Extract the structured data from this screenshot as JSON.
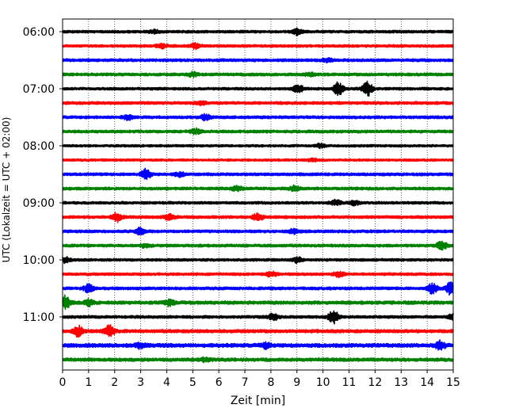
{
  "chart_data": {
    "type": "line",
    "title": "",
    "xlabel": "Zeit  [min]",
    "ylabel": "UTC (Lokalzeit = UTC + 02:00)",
    "xlim": [
      0,
      15
    ],
    "x_ticks": [
      0,
      1,
      2,
      3,
      4,
      5,
      6,
      7,
      8,
      9,
      10,
      11,
      12,
      13,
      14,
      15
    ],
    "x_tick_labels": [
      "0",
      "1",
      "2",
      "3",
      "4",
      "5",
      "6",
      "7",
      "8",
      "9",
      "10",
      "11",
      "12",
      "13",
      "14",
      "15"
    ],
    "y_tick_labels": [
      "06:00",
      "07:00",
      "08:00",
      "09:00",
      "10:00",
      "11:00"
    ],
    "grid": "vertical dotted",
    "color_cycle": [
      "#000000",
      "#ff0000",
      "#0000ff",
      "#008000"
    ],
    "series": [
      {
        "start": "06:00",
        "color": "#000000",
        "base_amplitude": 0.28,
        "events": [
          [
            9.0,
            0.6
          ],
          [
            3.5,
            0.35
          ]
        ]
      },
      {
        "start": "06:15",
        "color": "#ff0000",
        "base_amplitude": 0.28,
        "events": [
          [
            3.8,
            0.5
          ],
          [
            5.1,
            0.5
          ]
        ]
      },
      {
        "start": "06:30",
        "color": "#0000ff",
        "base_amplitude": 0.3,
        "events": [
          [
            10.2,
            0.35
          ]
        ]
      },
      {
        "start": "06:45",
        "color": "#008000",
        "base_amplitude": 0.3,
        "events": [
          [
            5.0,
            0.4
          ],
          [
            9.5,
            0.3
          ]
        ]
      },
      {
        "start": "07:00",
        "color": "#000000",
        "base_amplitude": 0.28,
        "events": [
          [
            9.05,
            0.8
          ],
          [
            10.6,
            1.3
          ],
          [
            11.7,
            1.5
          ]
        ]
      },
      {
        "start": "07:15",
        "color": "#ff0000",
        "base_amplitude": 0.3,
        "events": [
          [
            5.3,
            0.35
          ]
        ]
      },
      {
        "start": "07:30",
        "color": "#0000ff",
        "base_amplitude": 0.3,
        "events": [
          [
            2.5,
            0.5
          ],
          [
            5.5,
            0.6
          ]
        ]
      },
      {
        "start": "07:45",
        "color": "#008000",
        "base_amplitude": 0.3,
        "events": [
          [
            5.1,
            0.5
          ]
        ]
      },
      {
        "start": "08:00",
        "color": "#000000",
        "base_amplitude": 0.25,
        "events": [
          [
            9.9,
            0.4
          ]
        ]
      },
      {
        "start": "08:15",
        "color": "#ff0000",
        "base_amplitude": 0.25,
        "events": [
          [
            9.6,
            0.35
          ]
        ]
      },
      {
        "start": "08:30",
        "color": "#0000ff",
        "base_amplitude": 0.3,
        "events": [
          [
            3.2,
            1.0
          ],
          [
            4.5,
            0.4
          ]
        ]
      },
      {
        "start": "08:45",
        "color": "#008000",
        "base_amplitude": 0.3,
        "events": [
          [
            6.7,
            0.45
          ],
          [
            8.9,
            0.5
          ]
        ]
      },
      {
        "start": "09:00",
        "color": "#000000",
        "base_amplitude": 0.28,
        "events": [
          [
            10.5,
            0.5
          ],
          [
            11.2,
            0.4
          ]
        ]
      },
      {
        "start": "09:15",
        "color": "#ff0000",
        "base_amplitude": 0.3,
        "events": [
          [
            2.1,
            0.9
          ],
          [
            4.1,
            0.6
          ],
          [
            7.5,
            0.7
          ]
        ]
      },
      {
        "start": "09:30",
        "color": "#0000ff",
        "base_amplitude": 0.3,
        "events": [
          [
            3.0,
            0.7
          ],
          [
            8.9,
            0.5
          ]
        ]
      },
      {
        "start": "09:45",
        "color": "#008000",
        "base_amplitude": 0.3,
        "events": [
          [
            14.55,
            1.0
          ],
          [
            3.2,
            0.35
          ]
        ]
      },
      {
        "start": "10:00",
        "color": "#000000",
        "base_amplitude": 0.28,
        "events": [
          [
            0.1,
            0.6
          ],
          [
            9.0,
            0.5
          ]
        ]
      },
      {
        "start": "10:15",
        "color": "#ff0000",
        "base_amplitude": 0.28,
        "events": [
          [
            8.0,
            0.5
          ],
          [
            10.6,
            0.5
          ]
        ]
      },
      {
        "start": "10:30",
        "color": "#0000ff",
        "base_amplitude": 0.3,
        "events": [
          [
            1.0,
            0.8
          ],
          [
            14.2,
            1.0
          ],
          [
            14.9,
            1.2
          ]
        ]
      },
      {
        "start": "10:45",
        "color": "#008000",
        "base_amplitude": 0.35,
        "events": [
          [
            0.1,
            1.3
          ],
          [
            1.0,
            0.6
          ],
          [
            4.1,
            0.6
          ]
        ]
      },
      {
        "start": "11:00",
        "color": "#000000",
        "base_amplitude": 0.3,
        "events": [
          [
            8.1,
            0.6
          ],
          [
            10.4,
            1.3
          ],
          [
            15.0,
            0.5
          ]
        ]
      },
      {
        "start": "11:15",
        "color": "#ff0000",
        "base_amplitude": 0.35,
        "events": [
          [
            0.6,
            1.0
          ],
          [
            1.8,
            1.1
          ]
        ]
      },
      {
        "start": "11:30",
        "color": "#0000ff",
        "base_amplitude": 0.4,
        "events": [
          [
            3.0,
            0.5
          ],
          [
            7.8,
            0.5
          ],
          [
            14.5,
            0.8
          ]
        ]
      },
      {
        "start": "11:45",
        "color": "#008000",
        "base_amplitude": 0.35,
        "events": [
          [
            5.5,
            0.35
          ]
        ]
      }
    ]
  }
}
